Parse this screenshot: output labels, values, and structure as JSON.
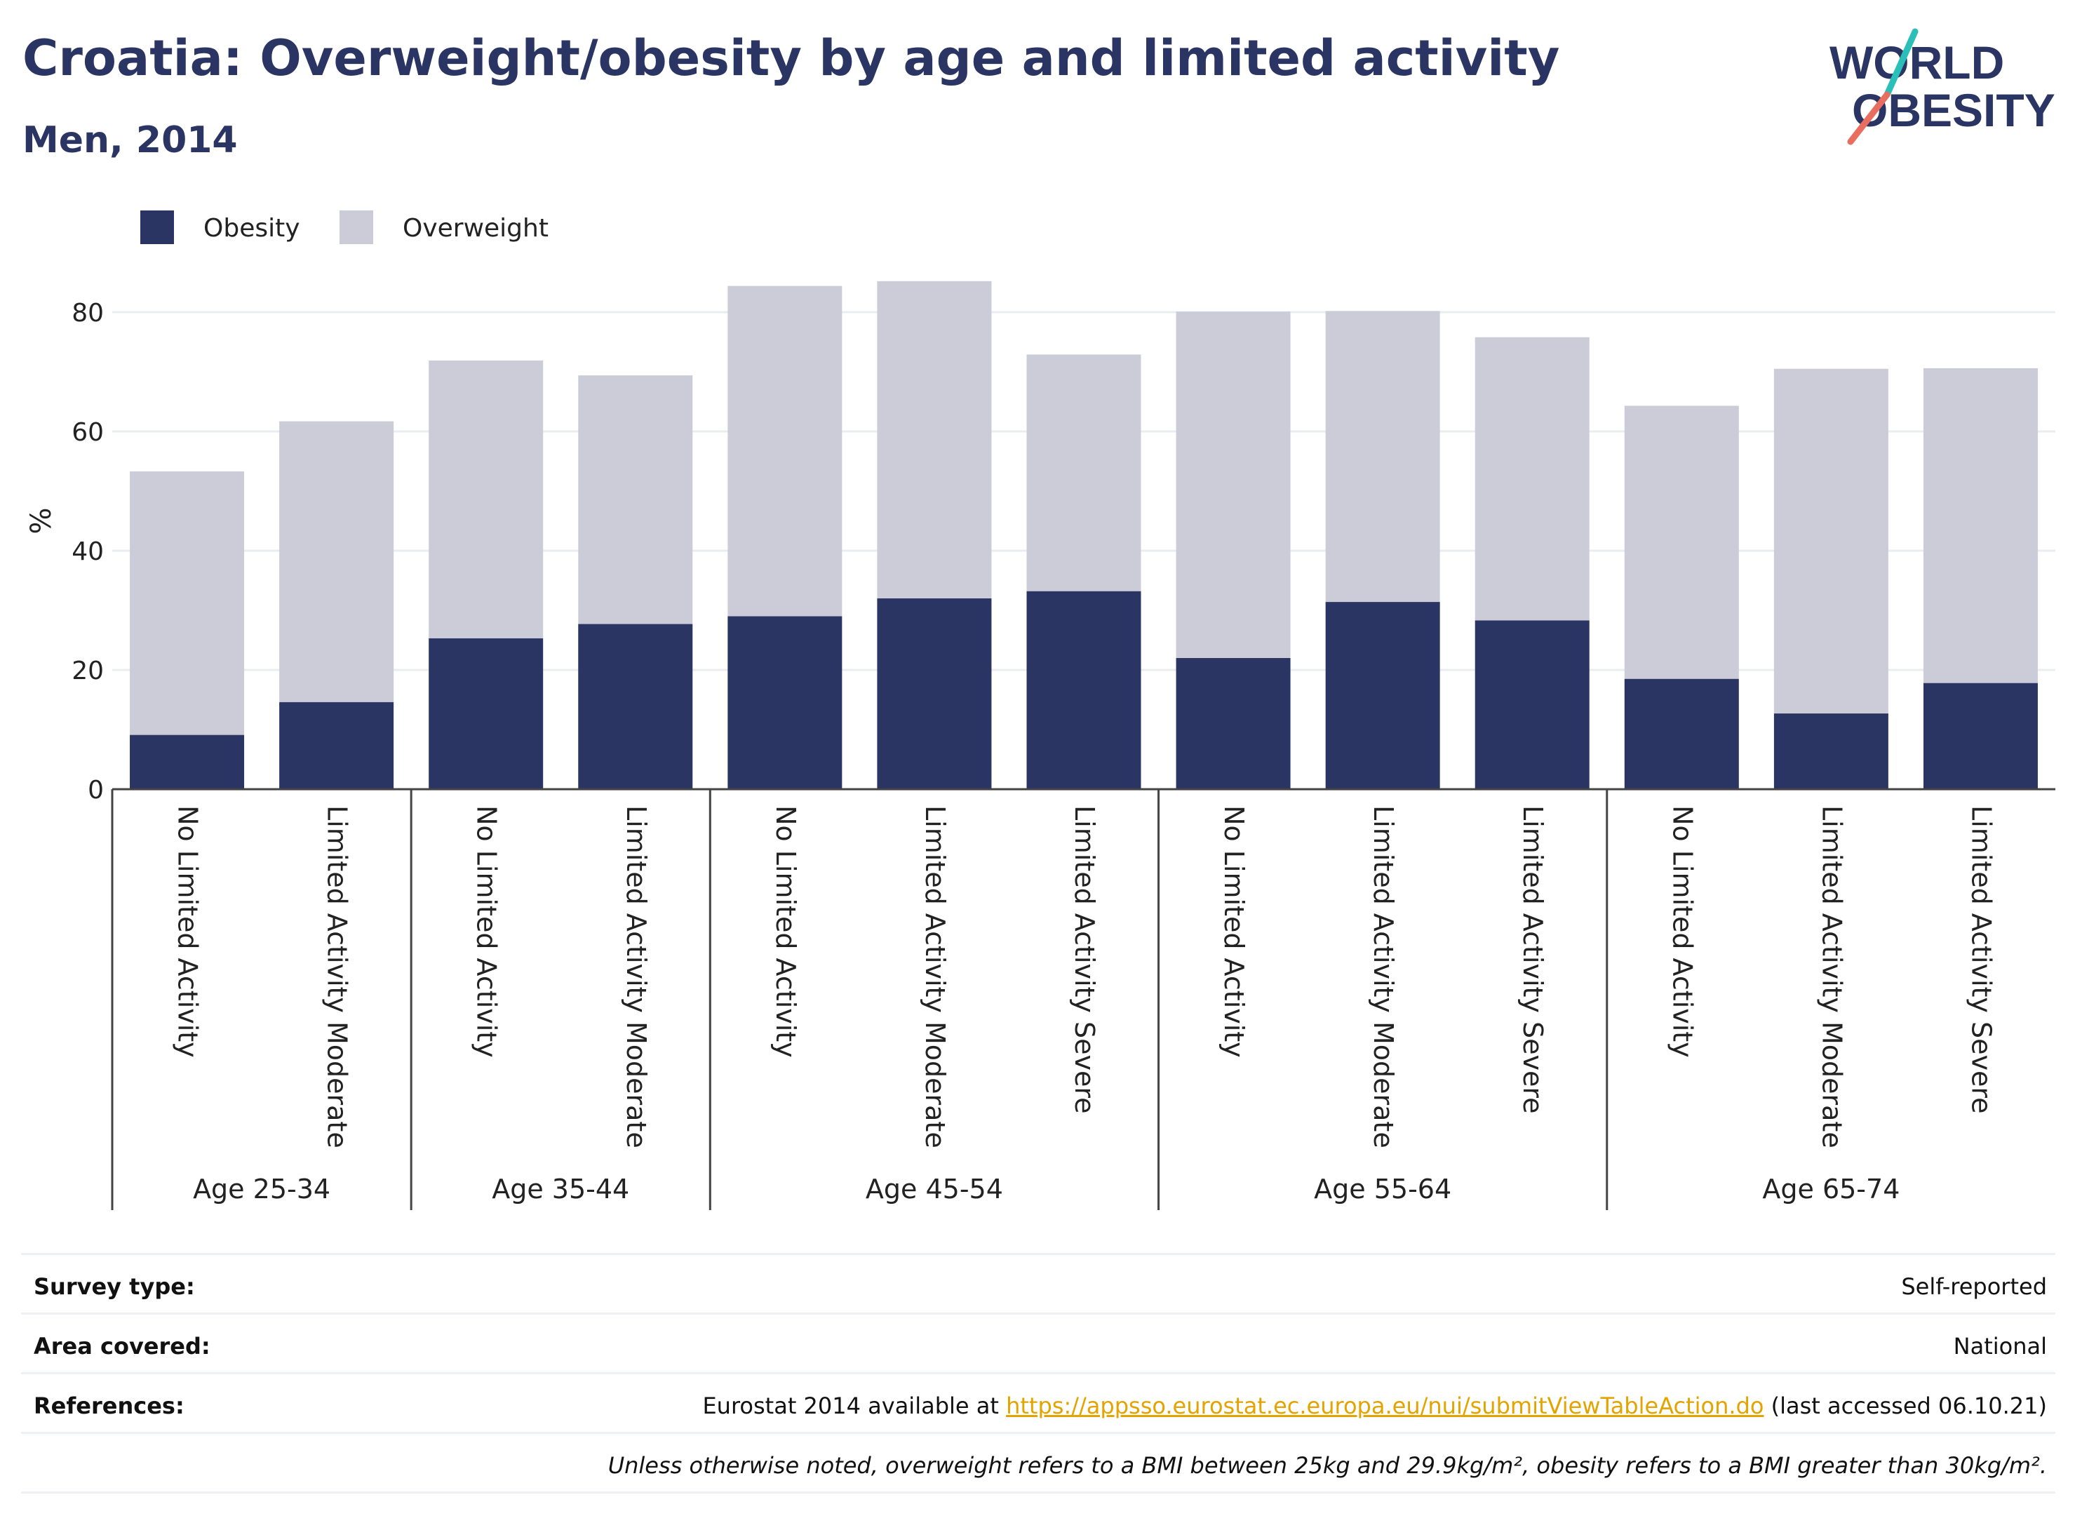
{
  "header": {
    "title": "Croatia: Overweight/obesity by age and limited activity",
    "subtitle": "Men, 2014",
    "logo_line1": "WORLD",
    "logo_line2": "OBESITY"
  },
  "colors": {
    "obesity": "#2a3563",
    "overweight": "#cbccd8",
    "title": "#2a3563",
    "logo_slash_teal": "#2bbfb9",
    "logo_slash_coral": "#e86f5f",
    "link": "#e3a400"
  },
  "chart_data": {
    "type": "bar",
    "stacked": true,
    "ylabel": "%",
    "ylim": [
      0,
      90
    ],
    "yticks": [
      0,
      20,
      40,
      60,
      80
    ],
    "grid": true,
    "legend_position": "top-left",
    "groups": [
      {
        "label": "Age 25-34",
        "categories": [
          "No Limited Activity",
          "Limited Activity Moderate"
        ]
      },
      {
        "label": "Age 35-44",
        "categories": [
          "No Limited Activity",
          "Limited Activity Moderate"
        ]
      },
      {
        "label": "Age 45-54",
        "categories": [
          "No Limited Activity",
          "Limited Activity Moderate",
          "Limited Activity Severe"
        ]
      },
      {
        "label": "Age 55-64",
        "categories": [
          "No Limited Activity",
          "Limited Activity Moderate",
          "Limited Activity Severe"
        ]
      },
      {
        "label": "Age 65-74",
        "categories": [
          "No Limited Activity",
          "Limited Activity Moderate",
          "Limited Activity Severe"
        ]
      }
    ],
    "series": [
      {
        "name": "Obesity",
        "values": [
          9.1,
          14.6,
          25.3,
          27.7,
          29.0,
          32.0,
          33.2,
          22.0,
          31.4,
          28.3,
          18.5,
          12.7,
          17.8
        ]
      },
      {
        "name": "Overweight",
        "values": [
          44.2,
          47.1,
          46.6,
          41.7,
          55.4,
          53.2,
          39.7,
          58.1,
          48.8,
          47.5,
          45.8,
          57.8,
          52.8
        ]
      }
    ]
  },
  "info": {
    "survey_label": "Survey type:",
    "survey_value": "Self-reported",
    "area_label": "Area covered:",
    "area_value": "National",
    "ref_label": "References:",
    "ref_prefix": "Eurostat 2014 available at ",
    "ref_link": "https://appsso.eurostat.ec.europa.eu/nui/submitViewTableAction.do",
    "ref_suffix": " (last accessed 06.10.21)",
    "note": "Unless otherwise noted, overweight refers to a BMI between 25kg and 29.9kg/m², obesity refers to a BMI greater than 30kg/m²."
  }
}
